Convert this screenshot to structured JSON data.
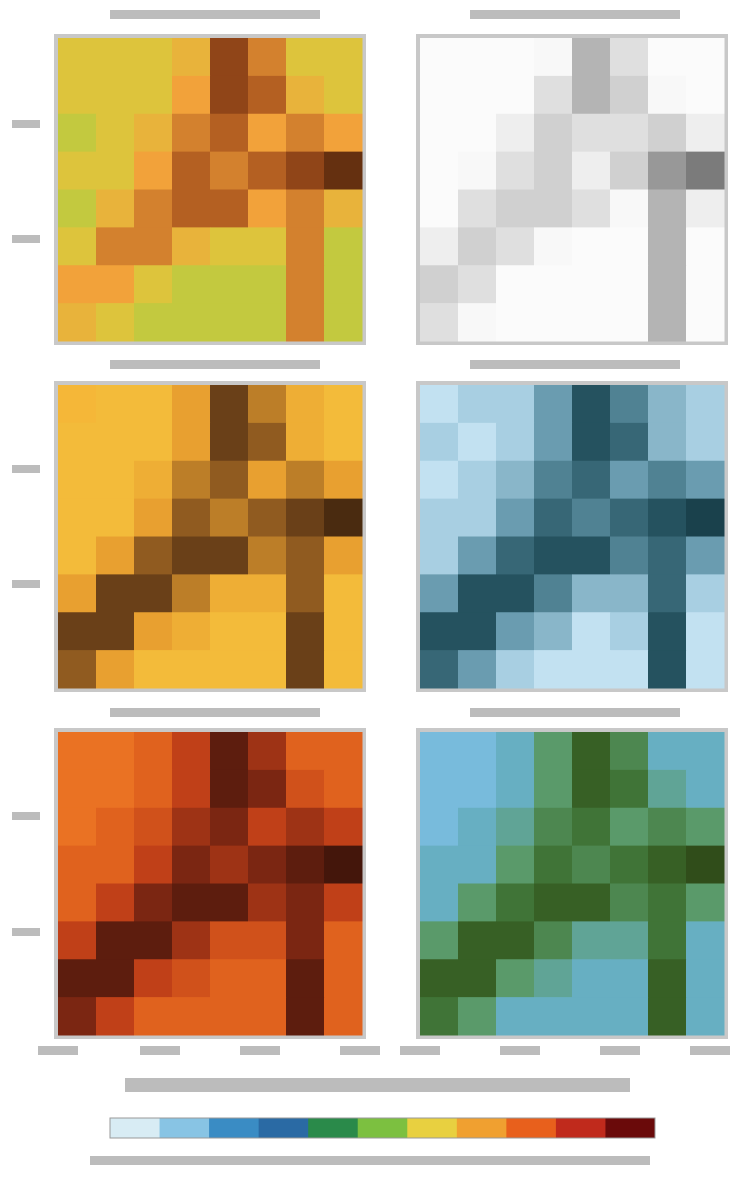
{
  "chart_data": [
    {
      "type": "heatmap",
      "colors": [
        "#6fbf4a",
        "#d8cc3c",
        "#f2a23a",
        "#a5501c",
        "#3a1a08"
      ],
      "values": [
        [
          0.3,
          0.3,
          0.3,
          0.4,
          0.8,
          0.6,
          0.3,
          0.3
        ],
        [
          0.3,
          0.3,
          0.3,
          0.5,
          0.8,
          0.7,
          0.4,
          0.3
        ],
        [
          0.2,
          0.3,
          0.4,
          0.6,
          0.7,
          0.5,
          0.6,
          0.5
        ],
        [
          0.3,
          0.3,
          0.5,
          0.7,
          0.6,
          0.7,
          0.8,
          0.9
        ],
        [
          0.2,
          0.4,
          0.6,
          0.7,
          0.7,
          0.5,
          0.6,
          0.4
        ],
        [
          0.3,
          0.6,
          0.6,
          0.4,
          0.3,
          0.3,
          0.6,
          0.2
        ],
        [
          0.5,
          0.5,
          0.3,
          0.2,
          0.2,
          0.2,
          0.6,
          0.2
        ],
        [
          0.4,
          0.3,
          0.2,
          0.2,
          0.2,
          0.2,
          0.6,
          0.2
        ]
      ]
    },
    {
      "type": "heatmap",
      "colors": [
        "#ffffff",
        "#f6f6f6",
        "#d0d0d0",
        "#8a8a8a",
        "#404040"
      ],
      "values": [
        [
          0.1,
          0.1,
          0.1,
          0.2,
          0.6,
          0.4,
          0.1,
          0.1
        ],
        [
          0.1,
          0.1,
          0.1,
          0.4,
          0.6,
          0.5,
          0.2,
          0.1
        ],
        [
          0.1,
          0.1,
          0.3,
          0.5,
          0.4,
          0.4,
          0.5,
          0.3
        ],
        [
          0.1,
          0.2,
          0.4,
          0.5,
          0.3,
          0.5,
          0.7,
          0.8
        ],
        [
          0.1,
          0.4,
          0.5,
          0.5,
          0.4,
          0.2,
          0.6,
          0.3
        ],
        [
          0.3,
          0.5,
          0.4,
          0.2,
          0.1,
          0.1,
          0.6,
          0.1
        ],
        [
          0.5,
          0.4,
          0.1,
          0.1,
          0.1,
          0.1,
          0.6,
          0.1
        ],
        [
          0.4,
          0.2,
          0.1,
          0.1,
          0.1,
          0.1,
          0.6,
          0.1
        ]
      ]
    },
    {
      "type": "heatmap",
      "colors": [
        "#f08a2a",
        "#f6c23c",
        "#e8a030",
        "#7a4a1c",
        "#2a1608"
      ],
      "values": [
        [
          0.2,
          0.3,
          0.3,
          0.5,
          0.8,
          0.6,
          0.4,
          0.3
        ],
        [
          0.3,
          0.3,
          0.3,
          0.5,
          0.8,
          0.7,
          0.4,
          0.3
        ],
        [
          0.3,
          0.3,
          0.4,
          0.6,
          0.7,
          0.5,
          0.6,
          0.5
        ],
        [
          0.3,
          0.3,
          0.5,
          0.7,
          0.6,
          0.7,
          0.8,
          0.9
        ],
        [
          0.3,
          0.5,
          0.7,
          0.8,
          0.8,
          0.6,
          0.7,
          0.5
        ],
        [
          0.5,
          0.8,
          0.8,
          0.6,
          0.4,
          0.4,
          0.7,
          0.3
        ],
        [
          0.8,
          0.8,
          0.5,
          0.4,
          0.3,
          0.3,
          0.8,
          0.3
        ],
        [
          0.7,
          0.5,
          0.3,
          0.3,
          0.3,
          0.3,
          0.8,
          0.3
        ]
      ]
    },
    {
      "type": "heatmap",
      "colors": [
        "#eaf5fb",
        "#b8dcee",
        "#6a9cb0",
        "#2a5a68",
        "#10303a"
      ],
      "values": [
        [
          0.2,
          0.3,
          0.3,
          0.5,
          0.8,
          0.6,
          0.4,
          0.3
        ],
        [
          0.3,
          0.2,
          0.3,
          0.5,
          0.8,
          0.7,
          0.4,
          0.3
        ],
        [
          0.2,
          0.3,
          0.4,
          0.6,
          0.7,
          0.5,
          0.6,
          0.5
        ],
        [
          0.3,
          0.3,
          0.5,
          0.7,
          0.6,
          0.7,
          0.8,
          0.9
        ],
        [
          0.3,
          0.5,
          0.7,
          0.8,
          0.8,
          0.6,
          0.7,
          0.5
        ],
        [
          0.5,
          0.8,
          0.8,
          0.6,
          0.4,
          0.4,
          0.7,
          0.3
        ],
        [
          0.8,
          0.8,
          0.5,
          0.4,
          0.2,
          0.3,
          0.8,
          0.2
        ],
        [
          0.7,
          0.5,
          0.3,
          0.2,
          0.2,
          0.2,
          0.8,
          0.2
        ]
      ]
    },
    {
      "type": "heatmap",
      "colors": [
        "#f09030",
        "#e86a20",
        "#c04018",
        "#6a2010",
        "#2a1008"
      ],
      "values": [
        [
          0.2,
          0.2,
          0.3,
          0.5,
          0.8,
          0.6,
          0.3,
          0.3
        ],
        [
          0.2,
          0.2,
          0.3,
          0.5,
          0.8,
          0.7,
          0.4,
          0.3
        ],
        [
          0.2,
          0.3,
          0.4,
          0.6,
          0.7,
          0.5,
          0.6,
          0.5
        ],
        [
          0.3,
          0.3,
          0.5,
          0.7,
          0.6,
          0.7,
          0.8,
          0.9
        ],
        [
          0.3,
          0.5,
          0.7,
          0.8,
          0.8,
          0.6,
          0.7,
          0.5
        ],
        [
          0.5,
          0.8,
          0.8,
          0.6,
          0.4,
          0.4,
          0.7,
          0.3
        ],
        [
          0.8,
          0.8,
          0.5,
          0.4,
          0.3,
          0.3,
          0.8,
          0.3
        ],
        [
          0.7,
          0.5,
          0.3,
          0.3,
          0.3,
          0.3,
          0.8,
          0.3
        ]
      ]
    },
    {
      "type": "heatmap",
      "colors": [
        "#aed8ec",
        "#6ab4d8",
        "#5a9a6a",
        "#3a6a2a",
        "#2a3a10"
      ],
      "values": [
        [
          0.2,
          0.2,
          0.3,
          0.5,
          0.8,
          0.6,
          0.3,
          0.3
        ],
        [
          0.2,
          0.2,
          0.3,
          0.5,
          0.8,
          0.7,
          0.4,
          0.3
        ],
        [
          0.2,
          0.3,
          0.4,
          0.6,
          0.7,
          0.5,
          0.6,
          0.5
        ],
        [
          0.3,
          0.3,
          0.5,
          0.7,
          0.6,
          0.7,
          0.8,
          0.9
        ],
        [
          0.3,
          0.5,
          0.7,
          0.8,
          0.8,
          0.6,
          0.7,
          0.5
        ],
        [
          0.5,
          0.8,
          0.8,
          0.6,
          0.4,
          0.4,
          0.7,
          0.3
        ],
        [
          0.8,
          0.8,
          0.5,
          0.4,
          0.3,
          0.3,
          0.8,
          0.3
        ],
        [
          0.7,
          0.5,
          0.3,
          0.3,
          0.3,
          0.3,
          0.8,
          0.3
        ]
      ]
    },
    {
      "type": "colorbar",
      "colors": [
        "#d8ecf4",
        "#88c4e4",
        "#3a8cc4",
        "#2a6aa4",
        "#2a8a4a",
        "#7cc040",
        "#e8d040",
        "#f0a030",
        "#e8601c",
        "#c02a1c",
        "#6a0a0a"
      ]
    }
  ]
}
